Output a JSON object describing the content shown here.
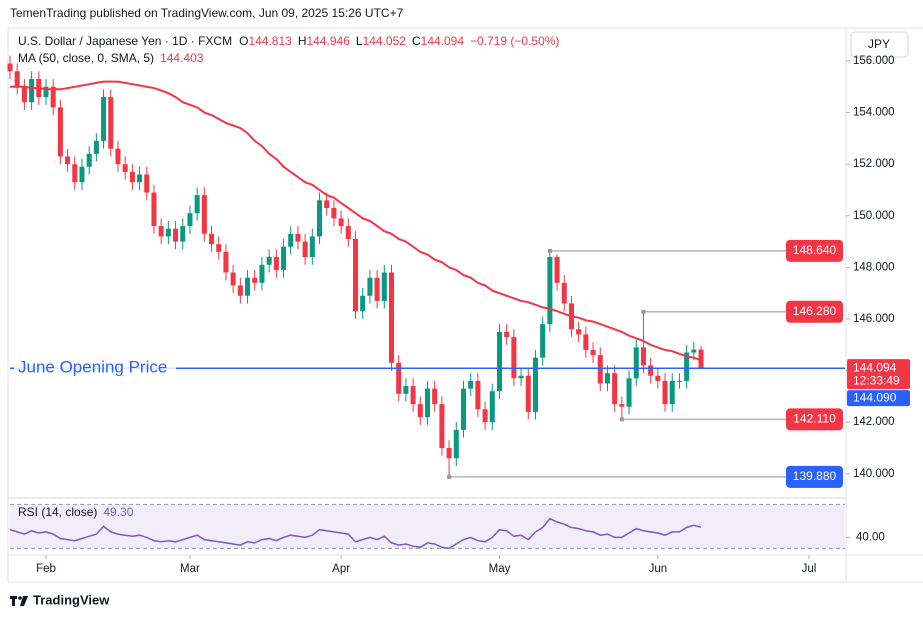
{
  "header": {
    "published": "TemenTrading published on TradingView.com, Jun 09, 2025 15:26 UTC+7",
    "currency": "JPY",
    "logo": "TradingView"
  },
  "chart_data": [
    {
      "type": "candlestick",
      "title": "U.S. Dollar / Japanese Yen · 1D · FXCM",
      "ohlc_labels": [
        "O",
        "H",
        "L",
        "C"
      ],
      "change": "−0.719 (−0.50%)",
      "up_color": "#089981",
      "down_color": "#f23645",
      "open": [
        155.9,
        155.6,
        155.0,
        154.4,
        155.3,
        154.6,
        155.0,
        154.2,
        152.3,
        152.0,
        151.3,
        151.9,
        152.4,
        152.9,
        154.6,
        152.6,
        152.0,
        151.7,
        151.3,
        151.6,
        150.9,
        149.6,
        149.2,
        149.5,
        149.0,
        149.6,
        150.1,
        150.8,
        149.3,
        148.9,
        148.6,
        147.8,
        147.3,
        146.9,
        147.6,
        147.4,
        148.1,
        148.4,
        147.9,
        148.8,
        149.3,
        149.0,
        148.4,
        149.2,
        150.6,
        150.3,
        149.9,
        149.6,
        149.1,
        146.3,
        146.9,
        147.6,
        146.7,
        147.8,
        144.3,
        143.1,
        143.4,
        142.7,
        142.2,
        143.3,
        142.7,
        141.0,
        140.6,
        141.7,
        143.3,
        143.6,
        142.5,
        142.0,
        143.2,
        145.5,
        145.3,
        143.7,
        143.8,
        142.4,
        144.5,
        145.8,
        148.4,
        147.4,
        146.6,
        145.6,
        145.4,
        144.8,
        144.6,
        143.5,
        143.9,
        142.7,
        142.6,
        143.7,
        144.9,
        144.2,
        143.8,
        143.6,
        142.7,
        143.6,
        143.6,
        144.7,
        144.813
      ],
      "high": [
        156.2,
        155.9,
        155.3,
        155.6,
        155.6,
        155.3,
        155.3,
        154.5,
        152.6,
        152.3,
        152.2,
        152.7,
        153.2,
        154.9,
        154.9,
        152.9,
        152.3,
        152.0,
        151.9,
        151.9,
        151.2,
        149.9,
        149.8,
        149.8,
        149.9,
        150.4,
        151.1,
        151.1,
        149.6,
        149.2,
        148.9,
        148.1,
        147.6,
        147.9,
        147.9,
        148.4,
        148.7,
        148.7,
        149.1,
        149.6,
        149.6,
        149.3,
        149.5,
        150.9,
        150.9,
        150.6,
        150.2,
        149.9,
        149.4,
        147.2,
        147.9,
        147.9,
        148.1,
        148.1,
        144.6,
        143.7,
        143.7,
        143.0,
        143.6,
        143.6,
        143.0,
        141.3,
        142.0,
        143.6,
        143.9,
        143.9,
        142.8,
        143.5,
        145.8,
        145.8,
        145.6,
        144.1,
        144.1,
        144.8,
        146.1,
        148.64,
        148.5,
        147.7,
        146.9,
        145.9,
        145.7,
        145.1,
        144.9,
        144.2,
        144.2,
        143.0,
        144.0,
        145.2,
        146.28,
        144.5,
        144.1,
        143.9,
        143.9,
        143.9,
        145.0,
        145.1,
        144.946
      ],
      "low": [
        155.3,
        154.7,
        154.1,
        154.1,
        154.3,
        154.3,
        153.9,
        152.0,
        151.7,
        151.0,
        151.0,
        151.6,
        152.1,
        152.6,
        152.3,
        151.7,
        151.4,
        151.0,
        151.0,
        150.6,
        149.3,
        148.9,
        148.9,
        148.7,
        148.7,
        149.3,
        149.8,
        149.0,
        148.6,
        148.3,
        147.5,
        147.0,
        146.6,
        146.6,
        147.1,
        147.1,
        147.8,
        147.6,
        147.6,
        148.5,
        148.7,
        148.1,
        148.1,
        148.9,
        150.0,
        149.6,
        149.3,
        148.8,
        146.0,
        146.0,
        146.6,
        146.4,
        146.4,
        144.0,
        142.8,
        142.8,
        142.4,
        141.9,
        141.9,
        142.4,
        140.7,
        139.88,
        140.3,
        141.4,
        143.0,
        142.2,
        141.7,
        141.7,
        142.9,
        145.0,
        143.4,
        143.4,
        142.1,
        142.1,
        144.2,
        145.5,
        147.1,
        146.3,
        145.3,
        145.1,
        144.5,
        144.3,
        143.2,
        143.2,
        142.4,
        142.11,
        142.3,
        143.4,
        143.9,
        143.5,
        143.3,
        142.4,
        142.4,
        143.3,
        143.3,
        144.4,
        144.052
      ],
      "close": [
        155.6,
        155.0,
        154.4,
        155.3,
        154.6,
        155.0,
        154.2,
        152.3,
        152.0,
        151.3,
        151.9,
        152.4,
        152.9,
        154.6,
        152.6,
        152.0,
        151.7,
        151.3,
        151.6,
        150.9,
        149.6,
        149.2,
        149.5,
        149.0,
        149.6,
        150.1,
        150.8,
        149.3,
        148.9,
        148.6,
        147.8,
        147.3,
        146.9,
        147.6,
        147.4,
        148.1,
        148.4,
        147.9,
        148.8,
        149.3,
        149.0,
        148.4,
        149.2,
        150.6,
        150.3,
        149.9,
        149.6,
        149.1,
        146.3,
        146.9,
        147.6,
        146.7,
        147.8,
        144.3,
        143.1,
        143.4,
        142.7,
        142.2,
        143.3,
        142.7,
        141.0,
        140.6,
        141.7,
        143.3,
        143.6,
        142.5,
        142.0,
        143.2,
        145.5,
        145.3,
        143.7,
        143.8,
        142.4,
        144.5,
        145.8,
        148.4,
        147.4,
        146.6,
        145.6,
        145.4,
        144.8,
        144.6,
        143.5,
        143.9,
        142.7,
        142.6,
        143.7,
        144.9,
        144.2,
        143.8,
        143.6,
        142.7,
        143.6,
        143.6,
        144.7,
        144.813,
        144.094
      ],
      "ma": {
        "name": "MA (50, close, 0, SMA, 5)",
        "color": "#f23645",
        "values": [
          155.0,
          155.0,
          155.0,
          154.95,
          154.95,
          154.9,
          154.9,
          154.9,
          154.95,
          155.0,
          155.05,
          155.1,
          155.15,
          155.2,
          155.2,
          155.2,
          155.15,
          155.1,
          155.05,
          155.0,
          154.95,
          154.85,
          154.75,
          154.6,
          154.4,
          154.3,
          154.2,
          154.0,
          153.9,
          153.75,
          153.6,
          153.5,
          153.4,
          153.2,
          152.9,
          152.7,
          152.4,
          152.2,
          151.9,
          151.7,
          151.5,
          151.3,
          151.2,
          151.0,
          150.8,
          150.7,
          150.5,
          150.3,
          150.1,
          149.9,
          149.8,
          149.6,
          149.4,
          149.3,
          149.1,
          149.0,
          148.8,
          148.6,
          148.5,
          148.3,
          148.2,
          148.0,
          147.9,
          147.7,
          147.6,
          147.4,
          147.3,
          147.1,
          147.0,
          146.9,
          146.8,
          146.7,
          146.65,
          146.55,
          146.45,
          146.4,
          146.3,
          146.2,
          146.1,
          146.05,
          145.95,
          145.9,
          145.8,
          145.7,
          145.6,
          145.5,
          145.35,
          145.25,
          145.15,
          145.0,
          144.9,
          144.8,
          144.75,
          144.65,
          144.55,
          144.5,
          144.403
        ]
      },
      "xlim": [
        0,
        116
      ],
      "xticks": [
        {
          "value": 5,
          "label": "Feb"
        },
        {
          "value": 25,
          "label": "Mar"
        },
        {
          "value": 46,
          "label": "Apr"
        },
        {
          "value": 68,
          "label": "May"
        },
        {
          "value": 90,
          "label": "Jun"
        },
        {
          "value": 111,
          "label": "Jul"
        }
      ],
      "ylim": [
        139.1,
        157.2
      ],
      "yticks": [
        {
          "value": 140,
          "label": "140.000"
        },
        {
          "value": 142,
          "label": "142.000"
        },
        {
          "value": 144,
          "label": "144.000"
        },
        {
          "value": 146,
          "label": "146.000"
        },
        {
          "value": 148,
          "label": "148.000"
        },
        {
          "value": 150,
          "label": "150.000"
        },
        {
          "value": 152,
          "label": "152.000"
        },
        {
          "value": 154,
          "label": "154.000"
        },
        {
          "value": 156,
          "label": "156.000"
        }
      ],
      "levels": [
        {
          "value": 148.64,
          "label": "148.640",
          "color": "#f23645"
        },
        {
          "value": 146.28,
          "label": "146.280",
          "color": "#f23645"
        },
        {
          "value": 142.11,
          "label": "142.110",
          "color": "#f23645"
        },
        {
          "value": 139.88,
          "label": "139.880",
          "color": "#2962ff"
        }
      ],
      "opening_price": {
        "text": "June Opening Price",
        "value": 144.09,
        "label": "144.090",
        "color": "#2962ff"
      },
      "countdown": "12:33:49"
    },
    {
      "type": "line",
      "title": "RSI (14, close)",
      "current_label": "49.30",
      "color": "#7e57c2",
      "values": [
        47,
        45,
        43,
        46,
        44,
        45,
        43,
        39,
        38,
        37,
        39,
        41,
        43,
        50,
        45,
        43,
        42,
        41,
        42,
        40,
        37,
        36,
        37,
        36,
        38,
        40,
        42,
        38,
        37,
        36,
        35,
        34,
        33,
        36,
        35,
        38,
        39,
        37,
        40,
        42,
        41,
        40,
        42,
        47,
        46,
        45,
        44,
        43,
        36,
        38,
        40,
        38,
        41,
        35,
        33,
        34,
        32,
        31,
        35,
        34,
        31,
        30,
        34,
        38,
        40,
        37,
        36,
        40,
        47,
        46,
        41,
        42,
        38,
        45,
        49,
        57,
        54,
        52,
        49,
        48,
        46,
        45,
        42,
        43,
        40,
        40,
        44,
        48,
        46,
        45,
        44,
        42,
        45,
        45,
        49,
        51,
        49.3
      ],
      "ylim": [
        25.8,
        74
      ],
      "yticks": [
        {
          "value": 40,
          "label": "40.00"
        }
      ],
      "bands": [
        30,
        70
      ]
    }
  ]
}
